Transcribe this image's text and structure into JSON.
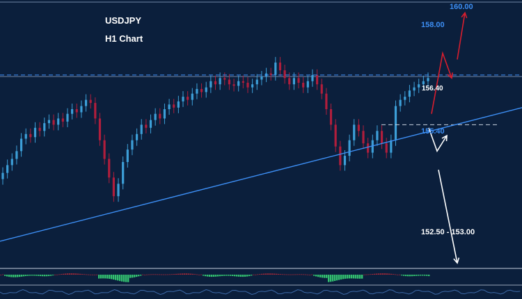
{
  "chart_data": {
    "type": "candlestick",
    "symbol": "USDJPY",
    "timeframe": "H1 Chart",
    "ylim": [
      151.8,
      160.3
    ],
    "candles_close": [
      154.85,
      155.1,
      155.3,
      155.55,
      155.95,
      156.1,
      156.0,
      156.3,
      156.2,
      156.45,
      156.55,
      156.4,
      156.6,
      156.5,
      156.75,
      156.9,
      156.8,
      157.0,
      157.2,
      157.1,
      156.6,
      155.9,
      155.3,
      154.7,
      154.1,
      154.5,
      155.2,
      155.6,
      155.9,
      156.1,
      156.4,
      156.3,
      156.55,
      156.75,
      156.6,
      156.9,
      157.05,
      156.95,
      157.15,
      157.3,
      157.2,
      157.4,
      157.55,
      157.45,
      157.6,
      157.8,
      157.7,
      157.9,
      157.85,
      157.7,
      157.65,
      157.8,
      157.75,
      157.6,
      157.7,
      157.85,
      157.95,
      158.05,
      158.0,
      158.4,
      158.15,
      157.9,
      157.7,
      157.9,
      157.75,
      157.6,
      157.8,
      158.0,
      157.7,
      157.4,
      156.9,
      156.4,
      155.7,
      155.1,
      155.4,
      155.9,
      156.4,
      156.2,
      155.8,
      155.5,
      155.9,
      156.2,
      155.8,
      155.5,
      155.9,
      157.0,
      157.2,
      157.3,
      157.5,
      157.6,
      157.7,
      157.8,
      157.9
    ],
    "candles_up": [
      true,
      true,
      true,
      true,
      true,
      true,
      false,
      true,
      false,
      true,
      true,
      false,
      true,
      false,
      true,
      true,
      false,
      true,
      true,
      false,
      false,
      false,
      false,
      false,
      false,
      true,
      true,
      true,
      true,
      true,
      true,
      false,
      true,
      true,
      false,
      true,
      true,
      false,
      true,
      true,
      false,
      true,
      true,
      false,
      true,
      true,
      false,
      true,
      false,
      false,
      false,
      true,
      false,
      false,
      true,
      true,
      true,
      true,
      false,
      true,
      false,
      false,
      false,
      true,
      false,
      false,
      true,
      true,
      false,
      false,
      false,
      false,
      false,
      false,
      true,
      true,
      true,
      false,
      false,
      false,
      true,
      true,
      false,
      false,
      true,
      true,
      true,
      true,
      true,
      true,
      true,
      true,
      true
    ],
    "levels": [
      {
        "value": 160.0,
        "label": "160.00",
        "color": "#3d8ff5"
      },
      {
        "value": 158.0,
        "label": "158.00",
        "color": "#3d8ff5"
      },
      {
        "value": 156.4,
        "label": "156.40",
        "color": "#ffffff"
      },
      {
        "value": 155.4,
        "label": "155.40",
        "color": "#3d8ff5"
      },
      {
        "value": 152.75,
        "label": "152.50 - 153.00",
        "color": "#ffffff"
      }
    ],
    "trendline": {
      "from": [
        0,
        152.65
      ],
      "to": [
        750,
        156.95
      ],
      "color": "#3d8ff5"
    },
    "colors": {
      "background": "#0b1f3c",
      "bull_candle": "#3d9fd8",
      "bear_candle": "#b01e3c",
      "up_arrow": "#d81e2e",
      "scenario_arrow": "#ffffff",
      "oscillator_pos": "#33c070",
      "oscillator_neg": "#a02838"
    }
  }
}
